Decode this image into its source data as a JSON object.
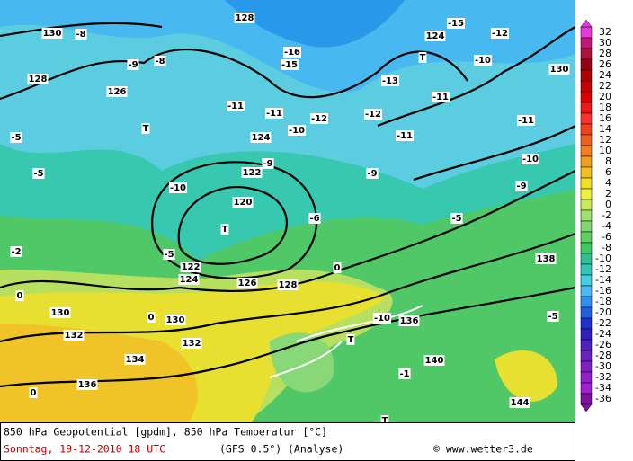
{
  "map": {
    "labels": [
      "130",
      "-8",
      "128",
      "-16",
      "-15",
      "124",
      "T",
      "-15",
      "-12",
      "-10",
      "130",
      "-9",
      "-8",
      "128",
      "126",
      "-11",
      "-11",
      "-12",
      "-12",
      "-13",
      "-11",
      "-11",
      "-10",
      "-11",
      "124",
      "T",
      "-5",
      "-5",
      "-9",
      "122",
      "-10",
      "-9",
      "-10",
      "-9",
      "120",
      "T",
      "-6",
      "-5",
      "-2",
      "-5",
      "122",
      "124",
      "126",
      "128",
      "0",
      "0",
      "130",
      "130",
      "0",
      "132",
      "132",
      "134",
      "136",
      "0",
      "T",
      "T",
      "-1",
      "144",
      "-10",
      "136",
      "140",
      "138",
      "-5"
    ],
    "colorbar": {
      "ticks": [
        32,
        30,
        28,
        26,
        24,
        22,
        20,
        18,
        16,
        14,
        12,
        10,
        8,
        6,
        4,
        2,
        0,
        -2,
        -4,
        -6,
        -8,
        -10,
        -12,
        -14,
        -16,
        -18,
        -20,
        -22,
        -24,
        -26,
        -28,
        -30,
        -32,
        -34,
        -36
      ],
      "colors": [
        "#e838e0",
        "#c01878",
        "#b01040",
        "#980010",
        "#b00000",
        "#c80000",
        "#e00000",
        "#f01818",
        "#ff3030",
        "#f04020",
        "#f06020",
        "#f08020",
        "#f0a020",
        "#f0c020",
        "#f0e020",
        "#f0f040",
        "#c8e860",
        "#a0e070",
        "#80d870",
        "#60d060",
        "#40c860",
        "#30c090",
        "#30c8b8",
        "#40d0e0",
        "#50b8f0",
        "#3090f0",
        "#2060e0",
        "#2030d0",
        "#3020c0",
        "#5020c0",
        "#6820c0",
        "#8020c0",
        "#9020c8",
        "#a020d0",
        "#8010a0"
      ]
    }
  },
  "footer": {
    "line1": "850 hPa Geopotential [gpdm], 850 hPa Temperatur [°C]",
    "date": "Sonntag, 19-12-2010  18 UTC",
    "model": "(GFS 0.5°)",
    "run": "(Analyse)",
    "credit": "© www.wetter3.de"
  }
}
